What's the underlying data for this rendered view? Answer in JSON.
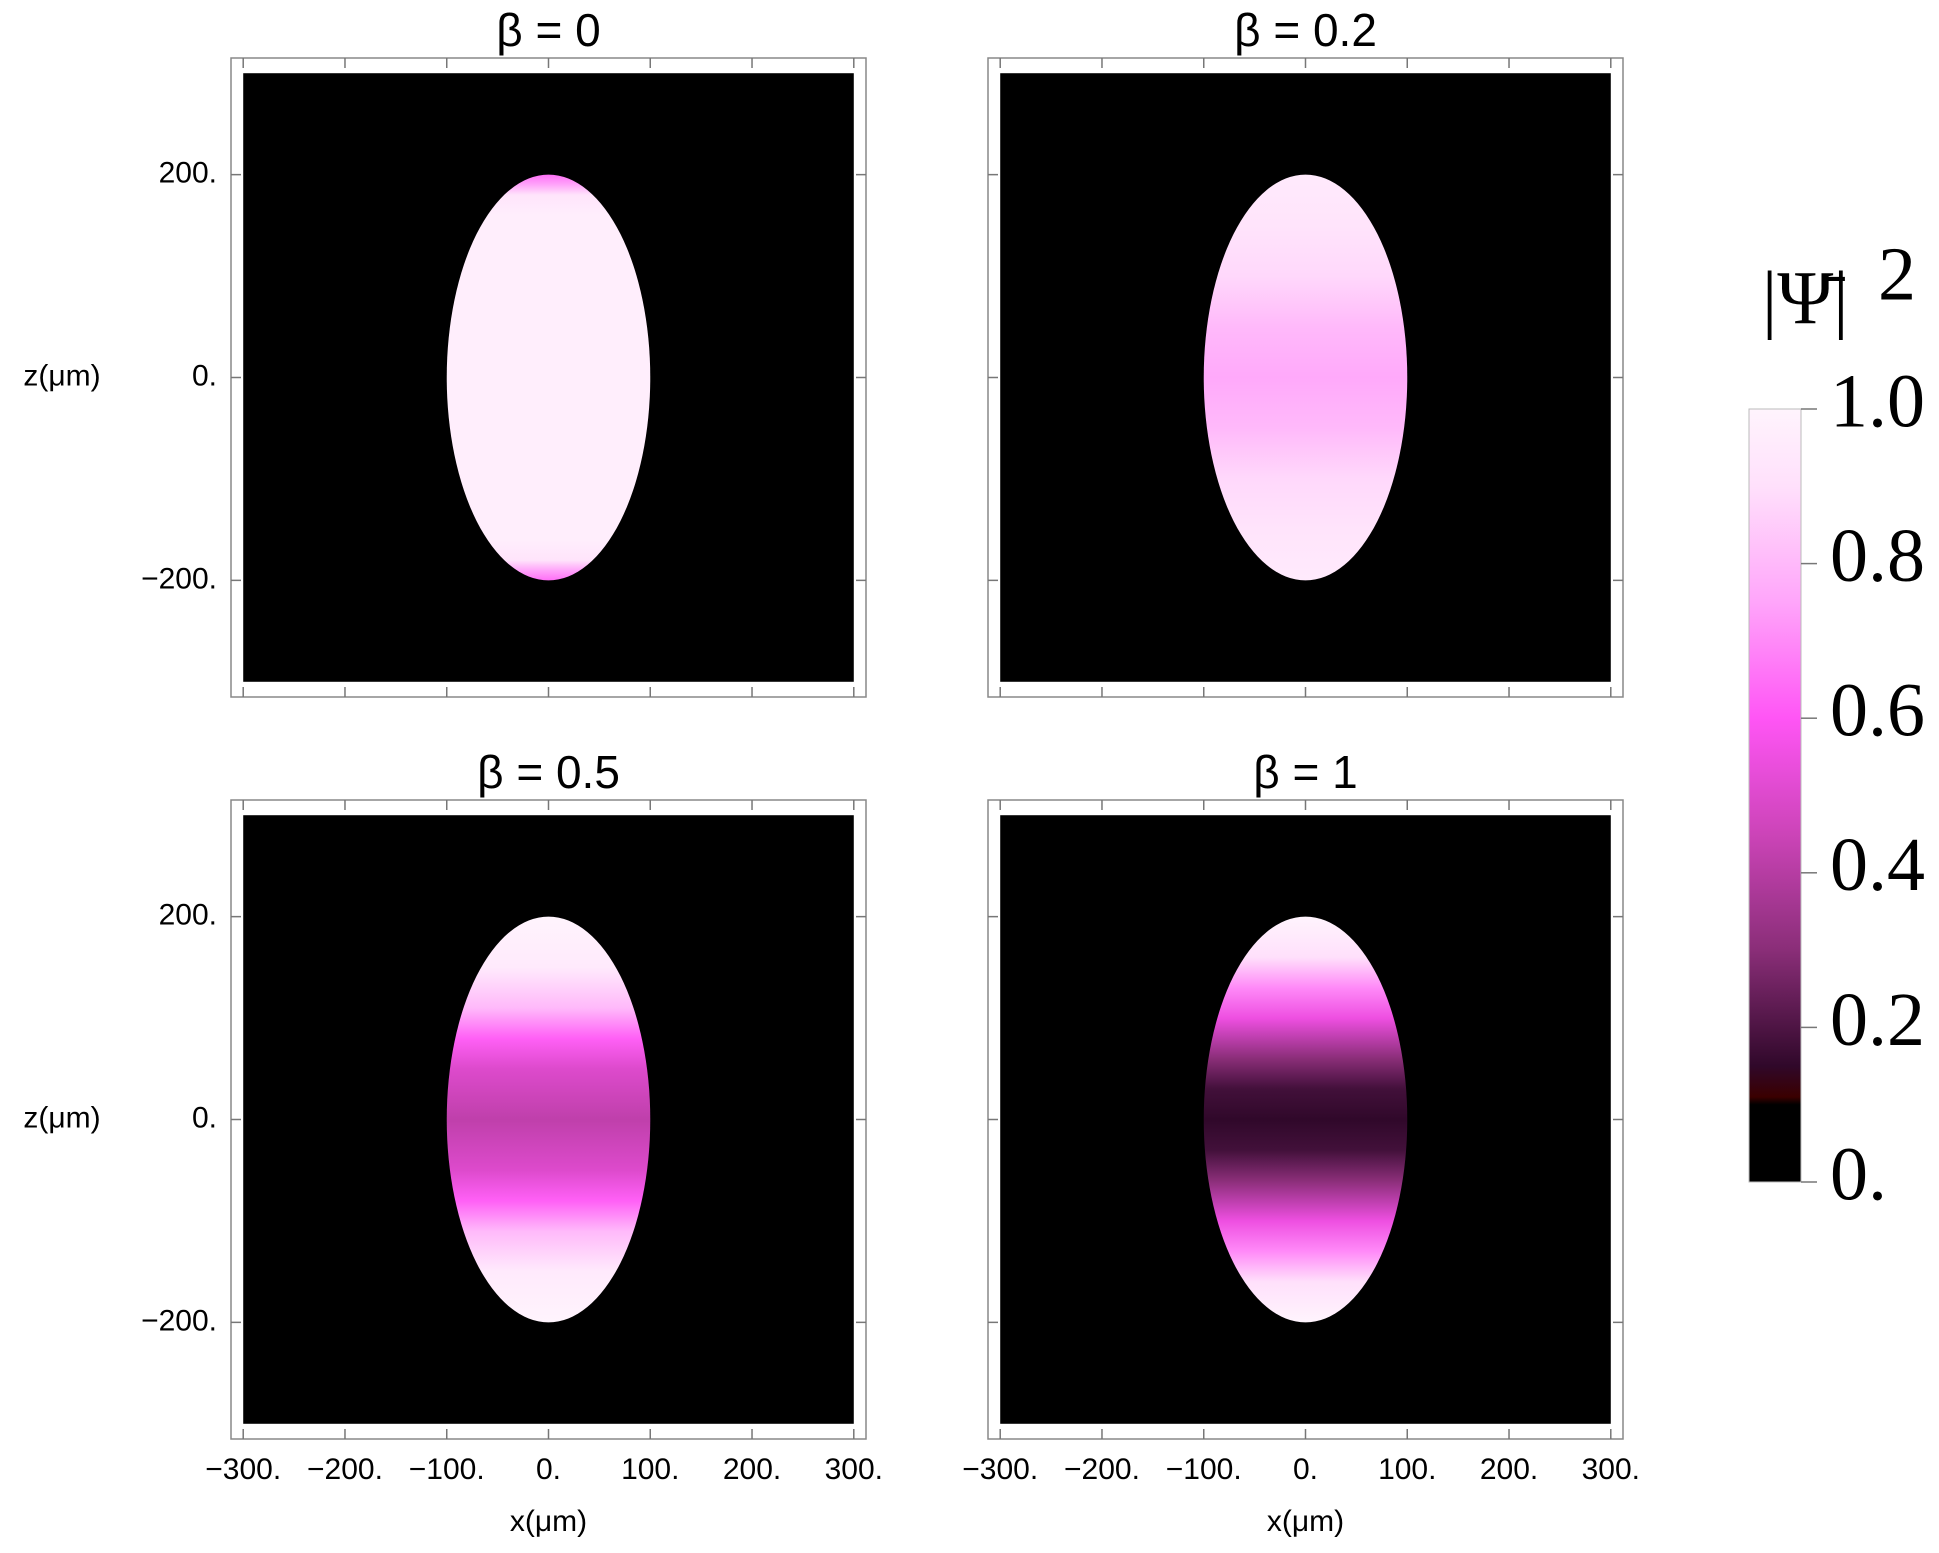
{
  "chart_data": [
    {
      "type": "density",
      "title": "β = 0",
      "ylabel": "z(μm)",
      "xlim": [
        -312,
        312
      ],
      "ylim": [
        -315,
        315
      ],
      "xticks": [
        -300,
        -200,
        -100,
        0,
        100,
        200,
        300
      ],
      "yticks": [
        {
          "value": -200,
          "label": "−200."
        },
        {
          "value": 0,
          "label": "0."
        },
        {
          "value": 200,
          "label": "200."
        }
      ],
      "region": [
        -300,
        300
      ],
      "ellipse_radii": [
        100,
        200
      ],
      "z": [
        -200,
        -190,
        -180,
        -160,
        0,
        160,
        180,
        190,
        200
      ],
      "values": [
        0.65,
        0.75,
        0.92,
        0.97,
        0.97,
        0.97,
        0.92,
        0.75,
        0.65
      ]
    },
    {
      "type": "density",
      "title": "β = 0.2",
      "xlim": [
        -312,
        312
      ],
      "ylim": [
        -315,
        315
      ],
      "xticks": [
        -300,
        -200,
        -100,
        0,
        100,
        200,
        300
      ],
      "yticks": [
        -200,
        0,
        200
      ],
      "region": [
        -300,
        300
      ],
      "ellipse_radii": [
        100,
        200
      ],
      "z": [
        -200,
        -150,
        -100,
        -50,
        0,
        50,
        100,
        150,
        200
      ],
      "values": [
        0.95,
        0.92,
        0.88,
        0.8,
        0.76,
        0.8,
        0.88,
        0.92,
        0.95
      ]
    },
    {
      "type": "density",
      "title": "β = 0.5",
      "xlabel": "x(μm)",
      "ylabel": "z(μm)",
      "xlim": [
        -312,
        312
      ],
      "ylim": [
        -315,
        315
      ],
      "xticks": [
        {
          "value": -300,
          "label": "−300."
        },
        {
          "value": -200,
          "label": "−200."
        },
        {
          "value": -100,
          "label": "−100."
        },
        {
          "value": 0,
          "label": "0."
        },
        {
          "value": 100,
          "label": "100."
        },
        {
          "value": 200,
          "label": "200."
        },
        {
          "value": 300,
          "label": "300."
        }
      ],
      "yticks": [
        {
          "value": -200,
          "label": "−200."
        },
        {
          "value": 0,
          "label": "0."
        },
        {
          "value": 200,
          "label": "200."
        }
      ],
      "region": [
        -300,
        300
      ],
      "ellipse_radii": [
        100,
        200
      ],
      "z": [
        -200,
        -150,
        -110,
        -80,
        -50,
        0,
        50,
        80,
        110,
        150,
        200
      ],
      "values": [
        1.0,
        0.95,
        0.8,
        0.62,
        0.5,
        0.42,
        0.5,
        0.62,
        0.8,
        0.95,
        1.0
      ]
    },
    {
      "type": "density",
      "title": "β = 1",
      "xlabel": "x(μm)",
      "xlim": [
        -312,
        312
      ],
      "ylim": [
        -315,
        315
      ],
      "xticks": [
        {
          "value": -300,
          "label": "−300."
        },
        {
          "value": -200,
          "label": "−200."
        },
        {
          "value": -100,
          "label": "−100."
        },
        {
          "value": 0,
          "label": "0."
        },
        {
          "value": 100,
          "label": "100."
        },
        {
          "value": 200,
          "label": "200."
        },
        {
          "value": 300,
          "label": "300."
        }
      ],
      "yticks": [
        -200,
        0,
        200
      ],
      "region": [
        -300,
        300
      ],
      "ellipse_radii": [
        100,
        200
      ],
      "z": [
        -200,
        -160,
        -130,
        -100,
        -60,
        -30,
        0,
        30,
        60,
        100,
        130,
        160,
        200
      ],
      "values": [
        1.0,
        0.9,
        0.7,
        0.55,
        0.3,
        0.18,
        0.15,
        0.18,
        0.3,
        0.55,
        0.7,
        0.9,
        1.0
      ]
    },
    {
      "type": "colorbar",
      "title": {
        "base": "|Ψ̄|",
        "exponent": "2"
      },
      "ylim": [
        0,
        1
      ],
      "yticks": [
        {
          "value": 0,
          "label": "0."
        },
        0.2,
        0.4,
        0.6,
        0.8,
        {
          "value": 1,
          "label": "1.0"
        }
      ],
      "colormap": [
        {
          "value": 0,
          "color": "#000000"
        },
        {
          "value": 0.1,
          "color": "#000000"
        },
        {
          "value": 0.11,
          "color": "#3a0000"
        },
        {
          "value": 0.15,
          "color": "#30082a"
        },
        {
          "value": 0.3,
          "color": "#8a2e78"
        },
        {
          "value": 0.45,
          "color": "#cc44b8"
        },
        {
          "value": 0.6,
          "color": "#ff55f5"
        },
        {
          "value": 0.75,
          "color": "#ffa5fa"
        },
        {
          "value": 0.9,
          "color": "#ffe0fb"
        },
        {
          "value": 1,
          "color": "#fff4fd"
        }
      ]
    }
  ]
}
